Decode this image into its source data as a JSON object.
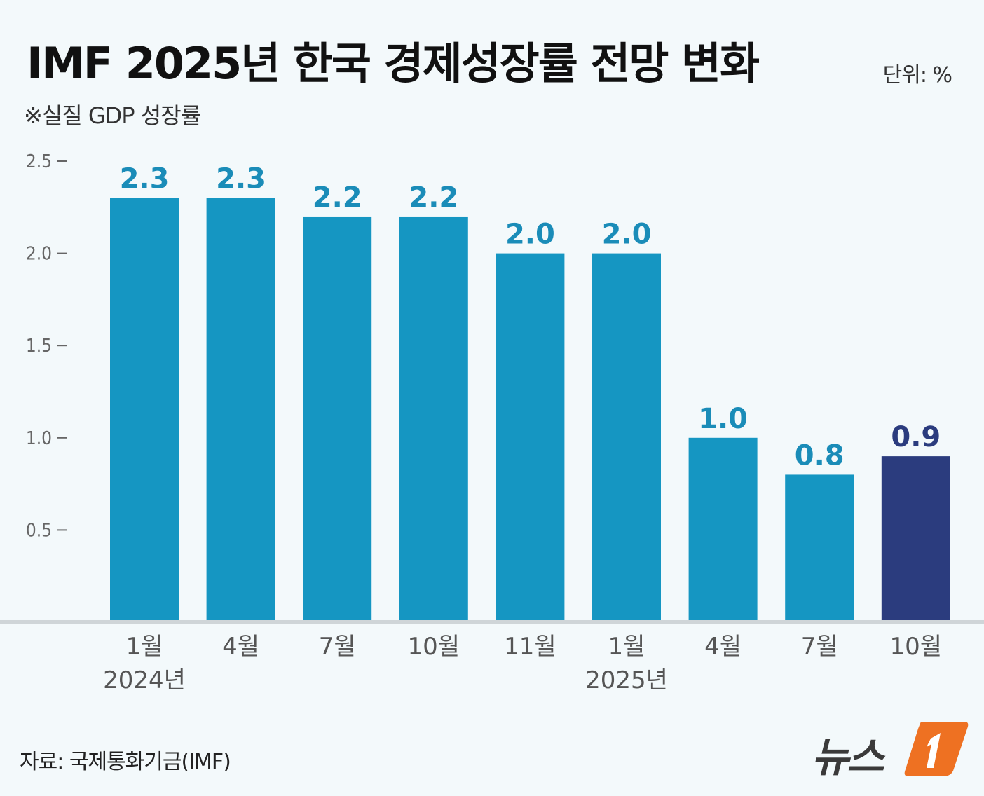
{
  "header": {
    "title": "IMF 2025년 한국 경제성장률 전망 변화",
    "unit": "단위: %",
    "subtitle": "※실질 GDP 성장률"
  },
  "footer": {
    "source": "자료: 국제통화기금(IMF)",
    "logo_text": "뉴스"
  },
  "colors": {
    "bar": "#1596c2",
    "bar_highlight": "#2b3c7e",
    "label": "#1a8cb8",
    "label_highlight": "#2b3c7e"
  },
  "chart_data": {
    "type": "bar",
    "categories": [
      "1월",
      "4월",
      "7월",
      "10월",
      "11월",
      "1월",
      "4월",
      "7월",
      "10월"
    ],
    "year_labels": [
      "2024년",
      "",
      "",
      "",
      "",
      "2025년",
      "",
      "",
      ""
    ],
    "values": [
      2.3,
      2.3,
      2.2,
      2.2,
      2.0,
      2.0,
      1.0,
      0.8,
      0.9
    ],
    "value_labels": [
      "2.3",
      "2.3",
      "2.2",
      "2.2",
      "2.0",
      "2.0",
      "1.0",
      "0.8",
      "0.9"
    ],
    "highlight_index": 8,
    "yticks": [
      0.5,
      1.0,
      1.5,
      2.0,
      2.5
    ],
    "ytick_labels": [
      "0.5",
      "1.0",
      "1.5",
      "2.0",
      "2.5"
    ],
    "ylim": [
      0,
      2.5
    ],
    "grid": false
  }
}
